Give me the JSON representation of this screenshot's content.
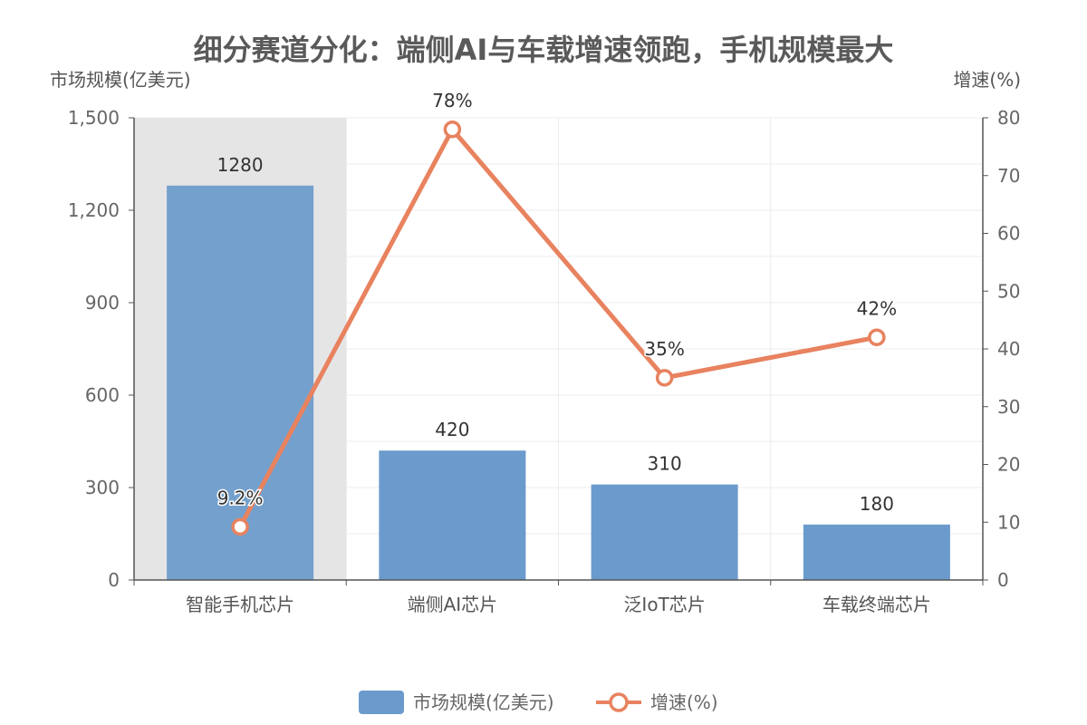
{
  "chart_data": {
    "type": "bar",
    "title": "细分赛道分化：端侧AI与车载增速领跑，手机规模最大",
    "categories": [
      "智能手机芯片",
      "端侧AI芯片",
      "泛IoT芯片",
      "车载终端芯片"
    ],
    "highlight_category": "智能手机芯片",
    "y_left": {
      "name": "市场规模(亿美元)",
      "min": 0,
      "max": 1500,
      "ticks": [
        "0",
        "300",
        "600",
        "900",
        "1,200",
        "1,500"
      ],
      "tick_values": [
        0,
        300,
        600,
        900,
        1200,
        1500
      ]
    },
    "y_right": {
      "name": "增速(%)",
      "min": 0,
      "max": 80,
      "ticks": [
        "0",
        "10",
        "20",
        "30",
        "40",
        "50",
        "60",
        "70",
        "80"
      ],
      "tick_values": [
        0,
        10,
        20,
        30,
        40,
        50,
        60,
        70,
        80
      ]
    },
    "series": [
      {
        "name": "市场规模(亿美元)",
        "type": "bar",
        "axis": "left",
        "values": [
          1280,
          420,
          310,
          180
        ],
        "labels": [
          "1280",
          "420",
          "310",
          "180"
        ],
        "color": "#6b9bcc"
      },
      {
        "name": "增速(%)",
        "type": "line",
        "axis": "right",
        "values": [
          9.2,
          78,
          35,
          42
        ],
        "labels": [
          "9.2%",
          "78%",
          "35%",
          "42%"
        ],
        "color": "#e8825f"
      }
    ],
    "legend_position": "bottom-center",
    "grid": true
  }
}
